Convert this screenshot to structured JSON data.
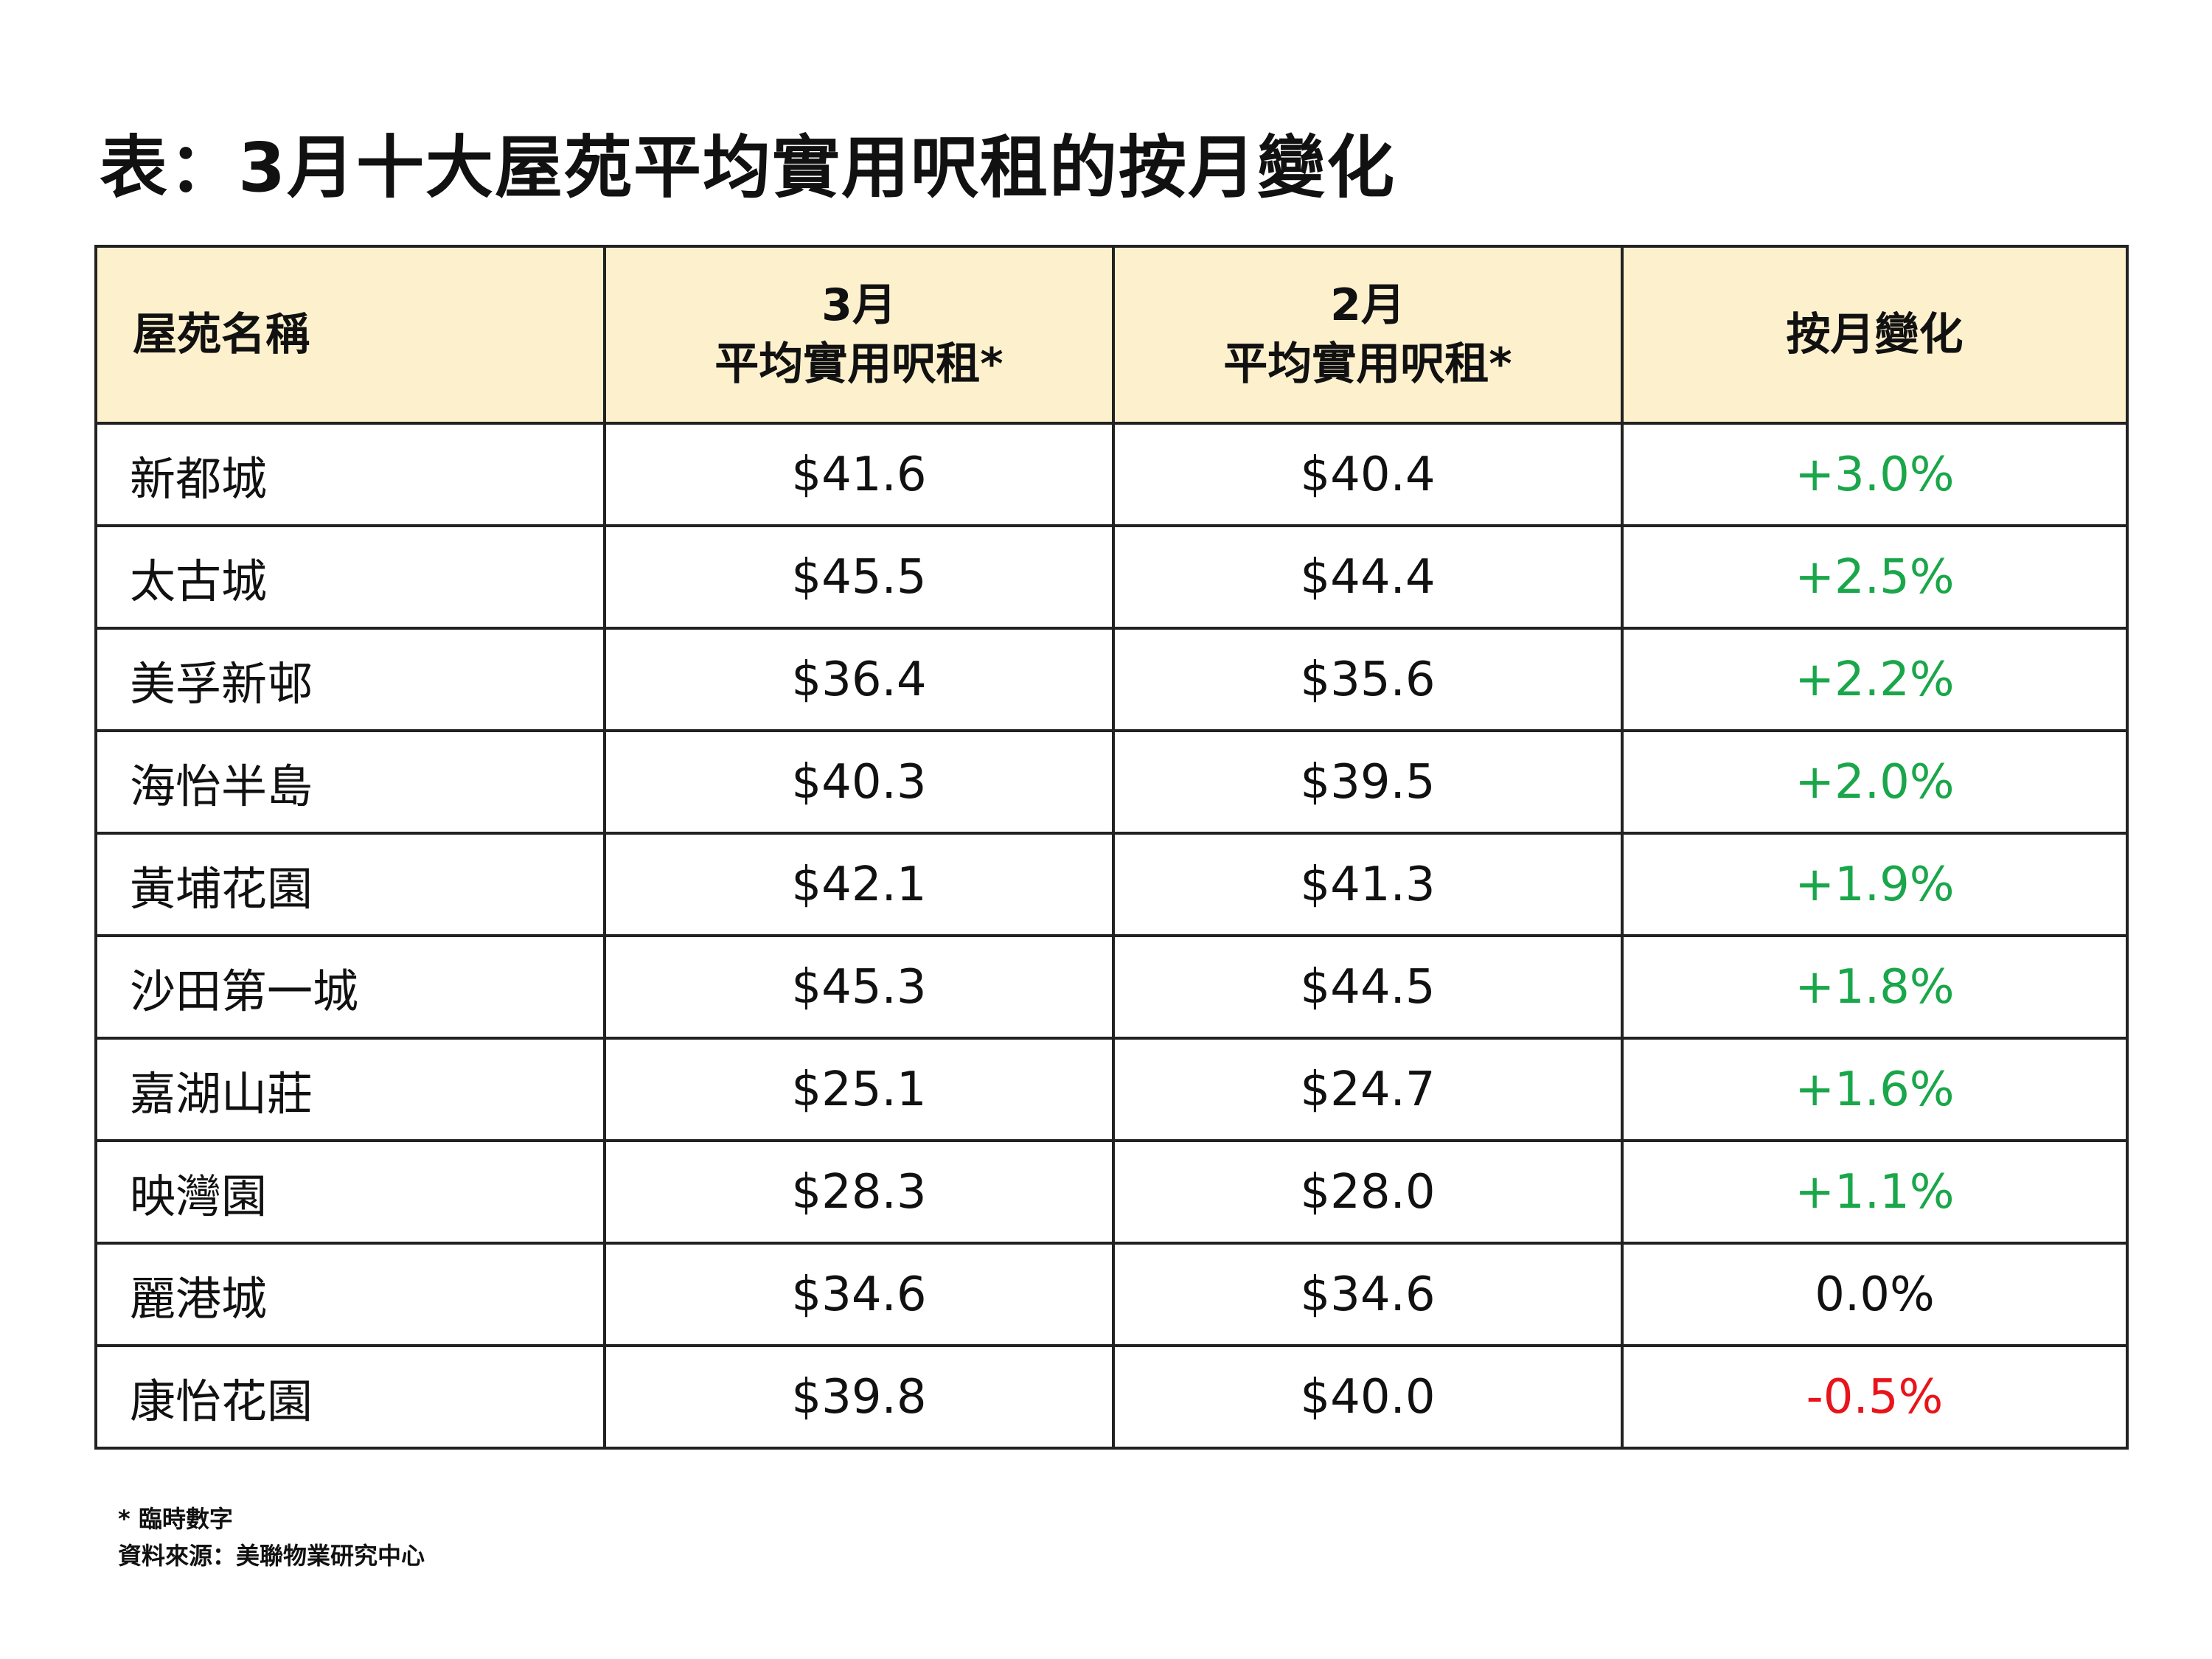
{
  "title": "表：3月十大屋苑平均實用呎租的按月變化",
  "table": {
    "headers": {
      "name": "屋苑名稱",
      "march_line1": "3月",
      "march_line2": "平均實用呎租*",
      "feb_line1": "2月",
      "feb_line2": "平均實用呎租*",
      "change": "按月變化"
    },
    "rows": [
      {
        "name": "新都城",
        "march": "$41.6",
        "feb": "$40.4",
        "change": "+3.0%",
        "trend": "positive"
      },
      {
        "name": "太古城",
        "march": "$45.5",
        "feb": "$44.4",
        "change": "+2.5%",
        "trend": "positive"
      },
      {
        "name": "美孚新邨",
        "march": "$36.4",
        "feb": "$35.6",
        "change": "+2.2%",
        "trend": "positive"
      },
      {
        "name": "海怡半島",
        "march": "$40.3",
        "feb": "$39.5",
        "change": "+2.0%",
        "trend": "positive"
      },
      {
        "name": "黃埔花園",
        "march": "$42.1",
        "feb": "$41.3",
        "change": "+1.9%",
        "trend": "positive"
      },
      {
        "name": "沙田第一城",
        "march": "$45.3",
        "feb": "$44.5",
        "change": "+1.8%",
        "trend": "positive"
      },
      {
        "name": "嘉湖山莊",
        "march": "$25.1",
        "feb": "$24.7",
        "change": "+1.6%",
        "trend": "positive"
      },
      {
        "name": "映灣園",
        "march": "$28.3",
        "feb": "$28.0",
        "change": "+1.1%",
        "trend": "positive"
      },
      {
        "name": "麗港城",
        "march": "$34.6",
        "feb": "$34.6",
        "change": "0.0%",
        "trend": "zero"
      },
      {
        "name": "康怡花園",
        "march": "$39.8",
        "feb": "$40.0",
        "change": "-0.5%",
        "trend": "negative"
      }
    ]
  },
  "colors": {
    "header_bg": "#fdf1cd",
    "positive": "#1aa64a",
    "negative": "#e8141b",
    "zero": "#111111",
    "border": "#222222"
  },
  "footnotes": {
    "provisional": "* 臨時數字",
    "source": "資料來源：美聯物業研究中心"
  }
}
